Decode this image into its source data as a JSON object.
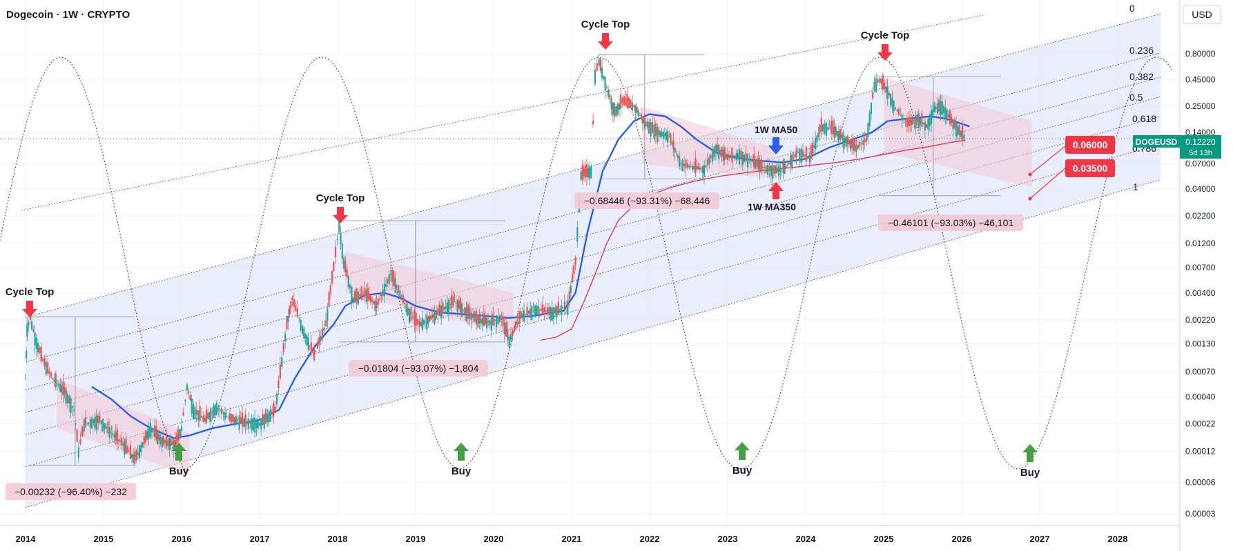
{
  "header": {
    "title": "Dogecoin · 1W · CRYPTO",
    "currency": "USD"
  },
  "chart_data": {
    "type": "line",
    "symbol": "DOGEUSD",
    "timeframe": "1W",
    "scale": "log",
    "x_ticks": [
      "2014",
      "2015",
      "2016",
      "2017",
      "2018",
      "2019",
      "2020",
      "2021",
      "2022",
      "2023",
      "2024",
      "2025",
      "2026",
      "2027",
      "2028"
    ],
    "y_ticks": [
      0.8,
      0.45,
      0.25,
      0.14,
      0.07,
      0.04,
      0.022,
      0.012,
      0.007,
      0.004,
      0.0022,
      0.0013,
      0.0007,
      0.0004,
      0.00022,
      0.00012,
      6e-05,
      3e-05
    ],
    "y_tick_labels": [
      "0.80000",
      "0.45000",
      "0.25000",
      "0.14000",
      "0.07000",
      "0.04000",
      "0.02200",
      "0.01200",
      "0.00700",
      "0.00400",
      "0.00220",
      "0.00130",
      "0.00070",
      "0.00040",
      "0.00022",
      "0.00012",
      "0.00006",
      "0.00003"
    ],
    "ylim": [
      2.5e-05,
      1.9
    ],
    "xlim": [
      2013.85,
      2028.7
    ],
    "price": [
      [
        2014.0,
        0.0006
      ],
      [
        2014.02,
        0.0018
      ],
      [
        2014.06,
        0.0023
      ],
      [
        2014.12,
        0.0015
      ],
      [
        2014.22,
        0.0009
      ],
      [
        2014.35,
        0.0006
      ],
      [
        2014.5,
        0.00045
      ],
      [
        2014.62,
        0.0003
      ],
      [
        2014.68,
        0.00012
      ],
      [
        2014.75,
        0.00022
      ],
      [
        2014.95,
        0.00024
      ],
      [
        2015.1,
        0.00018
      ],
      [
        2015.25,
        0.00014
      ],
      [
        2015.4,
        0.0001
      ],
      [
        2015.48,
        0.00013
      ],
      [
        2015.6,
        0.0002
      ],
      [
        2015.75,
        0.00015
      ],
      [
        2015.92,
        0.00014
      ],
      [
        2016.0,
        0.0002
      ],
      [
        2016.07,
        0.0005
      ],
      [
        2016.15,
        0.0003
      ],
      [
        2016.3,
        0.00024
      ],
      [
        2016.45,
        0.00032
      ],
      [
        2016.6,
        0.00025
      ],
      [
        2016.8,
        0.00023
      ],
      [
        2017.0,
        0.00022
      ],
      [
        2017.2,
        0.0003
      ],
      [
        2017.35,
        0.002
      ],
      [
        2017.42,
        0.0035
      ],
      [
        2017.55,
        0.0018
      ],
      [
        2017.7,
        0.001
      ],
      [
        2017.85,
        0.002
      ],
      [
        2017.95,
        0.007
      ],
      [
        2018.02,
        0.018
      ],
      [
        2018.08,
        0.008
      ],
      [
        2018.2,
        0.0035
      ],
      [
        2018.35,
        0.004
      ],
      [
        2018.5,
        0.003
      ],
      [
        2018.68,
        0.006
      ],
      [
        2018.8,
        0.004
      ],
      [
        2018.92,
        0.0025
      ],
      [
        2019.05,
        0.002
      ],
      [
        2019.2,
        0.0023
      ],
      [
        2019.35,
        0.0028
      ],
      [
        2019.5,
        0.0033
      ],
      [
        2019.65,
        0.0026
      ],
      [
        2019.8,
        0.0022
      ],
      [
        2019.95,
        0.0021
      ],
      [
        2020.1,
        0.0023
      ],
      [
        2020.2,
        0.0014
      ],
      [
        2020.35,
        0.0024
      ],
      [
        2020.55,
        0.0028
      ],
      [
        2020.75,
        0.0026
      ],
      [
        2020.95,
        0.003
      ],
      [
        2021.05,
        0.008
      ],
      [
        2021.12,
        0.055
      ],
      [
        2021.25,
        0.06
      ],
      [
        2021.3,
        0.5
      ],
      [
        2021.35,
        0.68
      ],
      [
        2021.45,
        0.38
      ],
      [
        2021.55,
        0.22
      ],
      [
        2021.65,
        0.28
      ],
      [
        2021.8,
        0.25
      ],
      [
        2021.95,
        0.17
      ],
      [
        2022.1,
        0.14
      ],
      [
        2022.25,
        0.13
      ],
      [
        2022.4,
        0.07
      ],
      [
        2022.55,
        0.065
      ],
      [
        2022.7,
        0.062
      ],
      [
        2022.85,
        0.1
      ],
      [
        2023.0,
        0.08
      ],
      [
        2023.15,
        0.085
      ],
      [
        2023.3,
        0.075
      ],
      [
        2023.45,
        0.065
      ],
      [
        2023.6,
        0.06
      ],
      [
        2023.75,
        0.065
      ],
      [
        2023.9,
        0.09
      ],
      [
        2024.05,
        0.08
      ],
      [
        2024.2,
        0.16
      ],
      [
        2024.35,
        0.15
      ],
      [
        2024.5,
        0.12
      ],
      [
        2024.65,
        0.1
      ],
      [
        2024.78,
        0.12
      ],
      [
        2024.88,
        0.4
      ],
      [
        2024.95,
        0.45
      ],
      [
        2025.05,
        0.35
      ],
      [
        2025.15,
        0.24
      ],
      [
        2025.3,
        0.17
      ],
      [
        2025.45,
        0.19
      ],
      [
        2025.55,
        0.16
      ],
      [
        2025.65,
        0.24
      ],
      [
        2025.75,
        0.25
      ],
      [
        2025.85,
        0.19
      ],
      [
        2025.95,
        0.15
      ],
      [
        2026.05,
        0.1222
      ]
    ],
    "ma50": [
      [
        2014.85,
        0.0005
      ],
      [
        2015.1,
        0.00038
      ],
      [
        2015.35,
        0.00026
      ],
      [
        2015.6,
        0.0002
      ],
      [
        2015.9,
        0.00016
      ],
      [
        2016.1,
        0.00017
      ],
      [
        2016.4,
        0.0002
      ],
      [
        2016.7,
        0.00022
      ],
      [
        2017.0,
        0.00024
      ],
      [
        2017.25,
        0.0003
      ],
      [
        2017.45,
        0.0006
      ],
      [
        2017.7,
        0.0012
      ],
      [
        2017.95,
        0.002
      ],
      [
        2018.1,
        0.003
      ],
      [
        2018.35,
        0.0038
      ],
      [
        2018.6,
        0.004
      ],
      [
        2018.8,
        0.0036
      ],
      [
        2019.0,
        0.003
      ],
      [
        2019.3,
        0.0026
      ],
      [
        2019.6,
        0.0025
      ],
      [
        2019.9,
        0.0024
      ],
      [
        2020.2,
        0.0023
      ],
      [
        2020.5,
        0.0024
      ],
      [
        2020.9,
        0.0027
      ],
      [
        2021.05,
        0.004
      ],
      [
        2021.2,
        0.015
      ],
      [
        2021.4,
        0.06
      ],
      [
        2021.6,
        0.12
      ],
      [
        2021.8,
        0.18
      ],
      [
        2022.0,
        0.21
      ],
      [
        2022.2,
        0.2
      ],
      [
        2022.4,
        0.16
      ],
      [
        2022.6,
        0.12
      ],
      [
        2022.85,
        0.09
      ],
      [
        2023.1,
        0.08
      ],
      [
        2023.4,
        0.075
      ],
      [
        2023.7,
        0.072
      ],
      [
        2024.0,
        0.078
      ],
      [
        2024.3,
        0.1
      ],
      [
        2024.6,
        0.12
      ],
      [
        2024.85,
        0.14
      ],
      [
        2025.05,
        0.18
      ],
      [
        2025.3,
        0.19
      ],
      [
        2025.6,
        0.2
      ],
      [
        2025.8,
        0.19
      ],
      [
        2026.1,
        0.16
      ]
    ],
    "ma350": [
      [
        2020.6,
        0.0014
      ],
      [
        2020.8,
        0.0015
      ],
      [
        2021.0,
        0.0018
      ],
      [
        2021.15,
        0.0032
      ],
      [
        2021.3,
        0.006
      ],
      [
        2021.45,
        0.012
      ],
      [
        2021.6,
        0.02
      ],
      [
        2021.8,
        0.028
      ],
      [
        2022.0,
        0.035
      ],
      [
        2022.3,
        0.042
      ],
      [
        2022.6,
        0.048
      ],
      [
        2022.9,
        0.053
      ],
      [
        2023.2,
        0.057
      ],
      [
        2023.5,
        0.061
      ],
      [
        2023.8,
        0.064
      ],
      [
        2024.1,
        0.068
      ],
      [
        2024.4,
        0.072
      ],
      [
        2024.7,
        0.078
      ],
      [
        2025.0,
        0.086
      ],
      [
        2025.3,
        0.095
      ],
      [
        2025.6,
        0.103
      ],
      [
        2025.85,
        0.112
      ],
      [
        2026.05,
        0.118
      ]
    ],
    "fib_levels": [
      "0",
      "0.236",
      "0.382",
      "0.5",
      "0.618",
      "0.786",
      "1"
    ],
    "cycle_tops": [
      {
        "label": "Cycle Top",
        "x": 2014.05,
        "y": 0.00235
      },
      {
        "label": "Cycle Top",
        "x": 2018.02,
        "y": 0.0195
      },
      {
        "label": "Cycle Top",
        "x": 2021.35,
        "y": 0.74
      },
      {
        "label": "Cycle Top",
        "x": 2024.95,
        "y": 0.48
      }
    ],
    "buys": [
      {
        "label": "Buy",
        "x": 2015.97,
        "y": 0.0001
      },
      {
        "label": "Buy",
        "x": 2019.55,
        "y": 0.0001
      },
      {
        "label": "Buy",
        "x": 2023.13,
        "y": 0.0001
      },
      {
        "label": "Buy",
        "x": 2026.8,
        "y": 0.0001
      }
    ],
    "drawdowns": [
      {
        "text": "−0.00232 (−96.40%) −232"
      },
      {
        "text": "−0.01804 (−93.07%) −1,804"
      },
      {
        "text": "−0.68446 (−93.31%) −68,446"
      },
      {
        "text": "−0.46101 (−93.03%) −46,101"
      }
    ],
    "ma_labels": {
      "ma50": "1W MA50",
      "ma350": "1W MA350"
    },
    "targets": [
      {
        "label": "0.06000",
        "value": 0.06
      },
      {
        "label": "0.03500",
        "value": 0.035
      }
    ],
    "last_price": {
      "symbol": "DOGEUSD",
      "value": "0.12220",
      "countdown": "5d 13h"
    }
  }
}
